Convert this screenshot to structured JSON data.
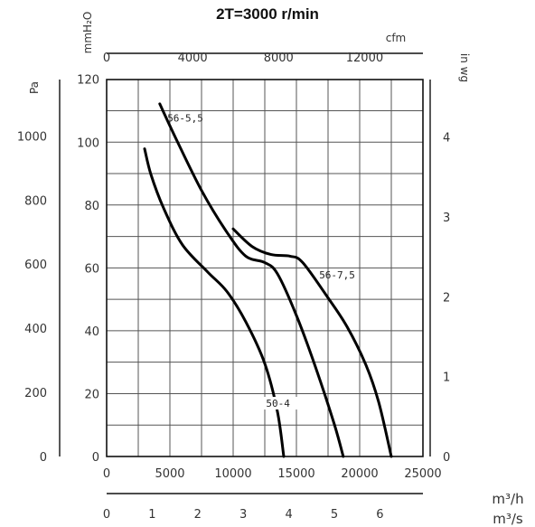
{
  "chart_data": {
    "type": "line",
    "title": "2T=3000 r/min",
    "x": {
      "primary": {
        "unit": "m³/h",
        "ticks": [
          "0",
          "5000",
          "10000",
          "15000",
          "20000",
          "25000"
        ],
        "range": [
          0,
          25000
        ]
      },
      "top": {
        "unit": "cfm",
        "ticks": [
          "0",
          "4000",
          "8000",
          "12000"
        ]
      },
      "bottom2": {
        "unit": "m³/s",
        "ticks": [
          "0",
          "1",
          "2",
          "3",
          "4",
          "5",
          "6"
        ]
      }
    },
    "y": {
      "primary": {
        "unit": "Pa",
        "ticks": [
          "0",
          "200",
          "400",
          "600",
          "800",
          "1000"
        ],
        "range": [
          0,
          1176
        ]
      },
      "inner": {
        "unit": "mmH₂O",
        "ticks": [
          "0",
          "20",
          "40",
          "60",
          "80",
          "100",
          "120"
        ]
      },
      "right": {
        "unit": "in wg",
        "ticks": [
          "0",
          "1",
          "2",
          "3",
          "4"
        ]
      }
    },
    "grid": true,
    "series": [
      {
        "name": "50-4",
        "points": [
          [
            3000,
            960
          ],
          [
            3500,
            880
          ],
          [
            4500,
            775
          ],
          [
            6000,
            660
          ],
          [
            8000,
            575
          ],
          [
            9500,
            515
          ],
          [
            11000,
            420
          ],
          [
            12500,
            290
          ],
          [
            13500,
            140
          ],
          [
            14000,
            0
          ]
        ]
      },
      {
        "name": "56-5,5",
        "points": [
          [
            4200,
            1100
          ],
          [
            5500,
            990
          ],
          [
            7500,
            830
          ],
          [
            9500,
            700
          ],
          [
            11000,
            625
          ],
          [
            12500,
            605
          ],
          [
            13500,
            570
          ],
          [
            15000,
            440
          ],
          [
            16500,
            280
          ],
          [
            18000,
            100
          ],
          [
            18700,
            0
          ]
        ]
      },
      {
        "name": "56-7,5",
        "points": [
          [
            10000,
            710
          ],
          [
            11500,
            655
          ],
          [
            13000,
            630
          ],
          [
            14500,
            625
          ],
          [
            15500,
            605
          ],
          [
            17500,
            495
          ],
          [
            19000,
            405
          ],
          [
            20500,
            285
          ],
          [
            21500,
            170
          ],
          [
            22500,
            0
          ]
        ]
      }
    ]
  }
}
